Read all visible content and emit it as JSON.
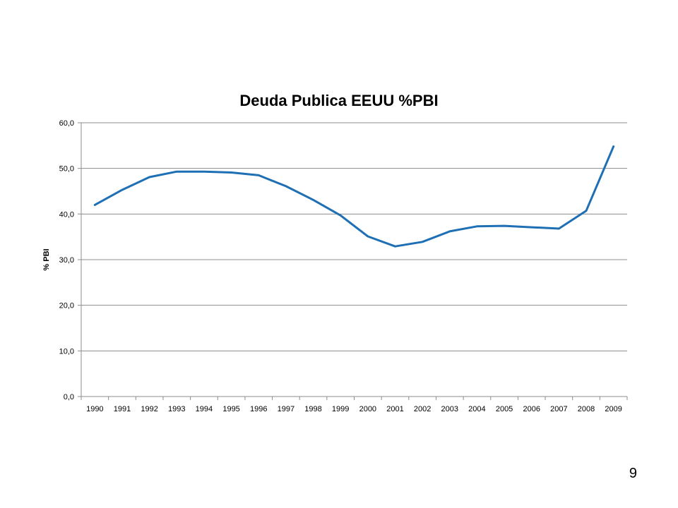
{
  "chart_data": {
    "type": "line",
    "title": "Deuda Publica EEUU %PBI",
    "xlabel": "",
    "ylabel": "% PBI",
    "ylim": [
      0,
      60
    ],
    "yticks": [
      "0,0",
      "10,0",
      "20,0",
      "30,0",
      "40,0",
      "50,0",
      "60,0"
    ],
    "grid": true,
    "legend": "none",
    "categories": [
      "1990",
      "1991",
      "1992",
      "1993",
      "1994",
      "1995",
      "1996",
      "1997",
      "1998",
      "1999",
      "2000",
      "2001",
      "2002",
      "2003",
      "2004",
      "2005",
      "2006",
      "2007",
      "2008",
      "2009"
    ],
    "series": [
      {
        "values": [
          42.0,
          45.3,
          48.1,
          49.3,
          49.3,
          49.1,
          48.5,
          46.1,
          43.1,
          39.7,
          35.1,
          32.9,
          33.9,
          36.2,
          37.3,
          37.4,
          37.1,
          36.8,
          40.7,
          54.8
        ],
        "color": "#1f6fb5"
      }
    ]
  },
  "page_number": "9"
}
